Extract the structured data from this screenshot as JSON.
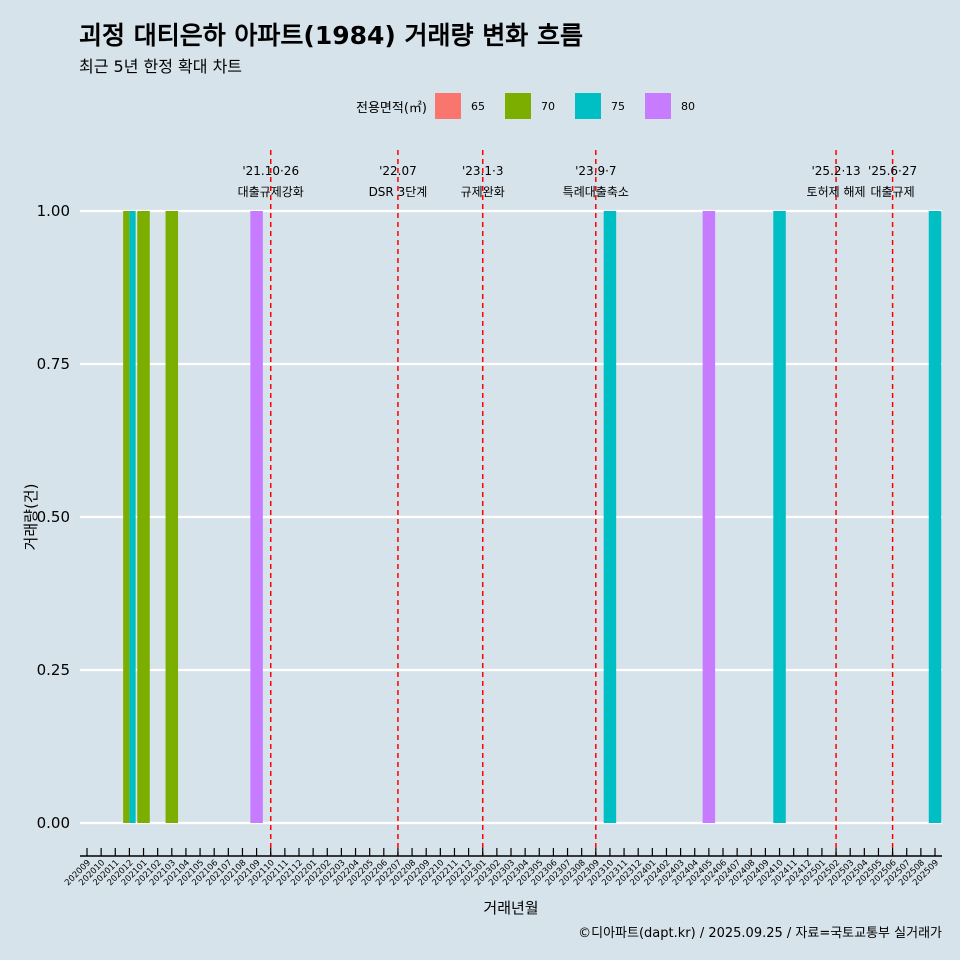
{
  "title": "괴정 대티은하 아파트(1984) 거래량 변화 흐름",
  "subtitle": "최근 5년 한정 확대 차트",
  "caption": "©디아파트(dapt.kr) / 2025.09.25 / 자료=국토교통부 실거래가",
  "chart_data": {
    "type": "bar",
    "xlabel": "거래년월",
    "ylabel": "거래량(건)",
    "ylim": [
      0,
      1
    ],
    "yticks": [
      "0.00",
      "0.25",
      "0.50",
      "0.75",
      "1.00"
    ],
    "ytick_values": [
      0,
      0.25,
      0.5,
      0.75,
      1
    ],
    "legend": {
      "title": "전용면적(㎡)",
      "position": "top",
      "items": [
        {
          "label": "65",
          "color": "#F8766D"
        },
        {
          "label": "70",
          "color": "#7CAE00"
        },
        {
          "label": "75",
          "color": "#00BFC4"
        },
        {
          "label": "80",
          "color": "#C77CFF"
        }
      ]
    },
    "categories": [
      "202009",
      "202010",
      "202011",
      "202012",
      "202101",
      "202102",
      "202103",
      "202104",
      "202105",
      "202106",
      "202107",
      "202108",
      "202109",
      "202110",
      "202111",
      "202112",
      "202201",
      "202202",
      "202203",
      "202204",
      "202205",
      "202206",
      "202207",
      "202208",
      "202209",
      "202210",
      "202211",
      "202212",
      "202301",
      "202302",
      "202303",
      "202304",
      "202305",
      "202306",
      "202307",
      "202308",
      "202309",
      "202310",
      "202311",
      "202312",
      "202401",
      "202402",
      "202403",
      "202404",
      "202405",
      "202406",
      "202407",
      "202408",
      "202409",
      "202410",
      "202411",
      "202412",
      "202501",
      "202502",
      "202503",
      "202504",
      "202505",
      "202506",
      "202507",
      "202508",
      "202509"
    ],
    "bars": [
      {
        "month": "202012",
        "area": "70",
        "value": 1
      },
      {
        "month": "202012",
        "area": "75",
        "value": 1
      },
      {
        "month": "202101",
        "area": "70",
        "value": 1
      },
      {
        "month": "202103",
        "area": "70",
        "value": 1
      },
      {
        "month": "202109",
        "area": "80",
        "value": 1
      },
      {
        "month": "202310",
        "area": "75",
        "value": 1
      },
      {
        "month": "202405",
        "area": "80",
        "value": 1
      },
      {
        "month": "202410",
        "area": "75",
        "value": 1
      },
      {
        "month": "202509",
        "area": "75",
        "value": 1
      }
    ],
    "annotations": [
      {
        "month": "202110",
        "line1": "'21.10·26",
        "line2": "대출규제강화"
      },
      {
        "month": "202207",
        "line1": "'22.07",
        "line2": "DSR 3단계"
      },
      {
        "month": "202301",
        "line1": "'23.1·3",
        "line2": "규제완화"
      },
      {
        "month": "202309",
        "line1": "'23.9·7",
        "line2": "특례대출축소"
      },
      {
        "month": "202502",
        "line1": "'25.2·13",
        "line2": "토허제 해제"
      },
      {
        "month": "202506",
        "line1": "'25.6·27",
        "line2": "대출규제"
      }
    ]
  }
}
